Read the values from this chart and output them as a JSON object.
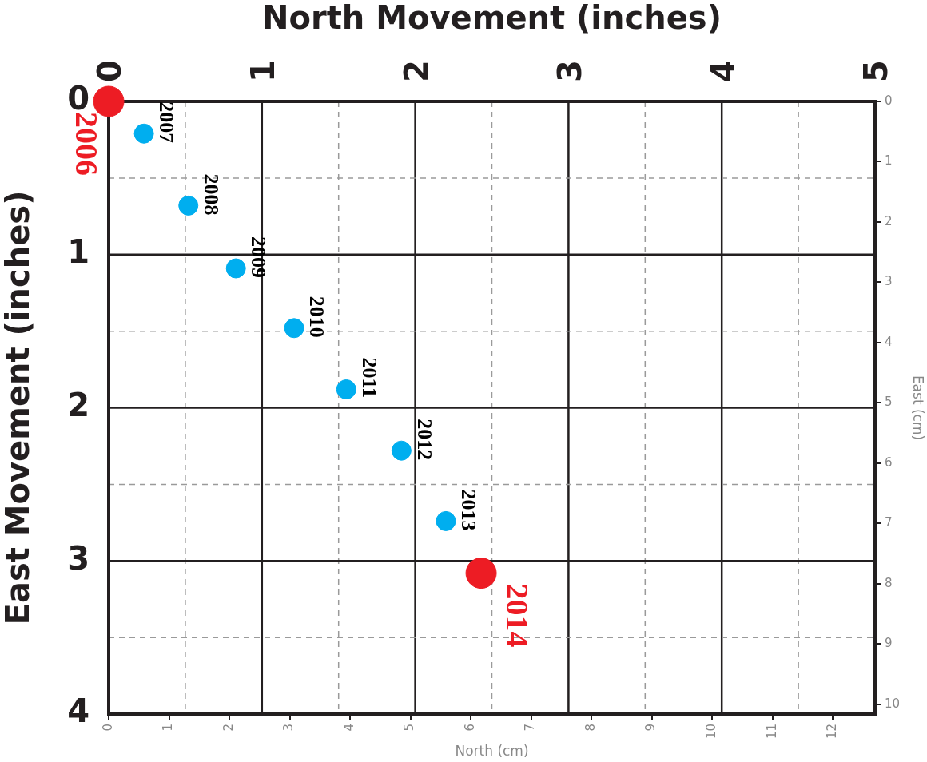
{
  "chart_data": {
    "type": "scatter",
    "xlabel": "North Movement (inches)",
    "ylabel": "East Movement (inches)",
    "x2label": "North (cm)",
    "y2label": "East (cm)",
    "xlim": [
      0,
      5
    ],
    "xticks": [
      0,
      {
        "value": 0.5,
        "label": null
      },
      1,
      {
        "value": 1.5,
        "label": null
      },
      2,
      {
        "value": 2.5,
        "label": null
      },
      3,
      {
        "value": 3.5,
        "label": null
      },
      4,
      {
        "value": 4.5,
        "label": null
      },
      5
    ],
    "ylim": [
      4,
      0
    ],
    "yticks": [
      0,
      {
        "value": 0.5,
        "label": null
      },
      1,
      {
        "value": 1.5,
        "label": null
      },
      2,
      {
        "value": 2.5,
        "label": null
      },
      3,
      {
        "value": 3.5,
        "label": null
      },
      4
    ],
    "x2lim": [
      0,
      12.7
    ],
    "x2ticks": [
      0,
      1,
      2,
      3,
      4,
      5,
      6,
      7,
      8,
      9,
      10,
      11,
      12
    ],
    "y2lim": [
      10.16,
      0
    ],
    "y2ticks": [
      0,
      1,
      2,
      3,
      4,
      5,
      6,
      7,
      8,
      9,
      10
    ],
    "series": [
      {
        "color": "#ed1c24",
        "x": [
          0,
          2.43
        ],
        "values": [
          0,
          3.08
        ]
      },
      {
        "color": "#00aeef",
        "x": [
          0.23,
          0.52,
          0.83,
          1.21,
          1.55,
          1.91,
          2.2
        ],
        "values": [
          0.21,
          0.68,
          1.09,
          1.48,
          1.88,
          2.28,
          2.74
        ]
      }
    ],
    "annotations": [
      {
        "text": "2006",
        "x": 0,
        "y": 0
      },
      {
        "text": "2007",
        "x": 0.23,
        "y": 0.21
      },
      {
        "text": "2008",
        "x": 0.52,
        "y": 0.68
      },
      {
        "text": "2009",
        "x": 0.83,
        "y": 1.09
      },
      {
        "text": "2010",
        "x": 1.21,
        "y": 1.48
      },
      {
        "text": "2011",
        "x": 1.55,
        "y": 1.88
      },
      {
        "text": "2012",
        "x": 1.91,
        "y": 2.28
      },
      {
        "text": "2013",
        "x": 2.2,
        "y": 2.74
      },
      {
        "text": "2014",
        "x": 2.43,
        "y": 3.08
      }
    ],
    "grid": true,
    "marker": "circle",
    "legend": false
  }
}
